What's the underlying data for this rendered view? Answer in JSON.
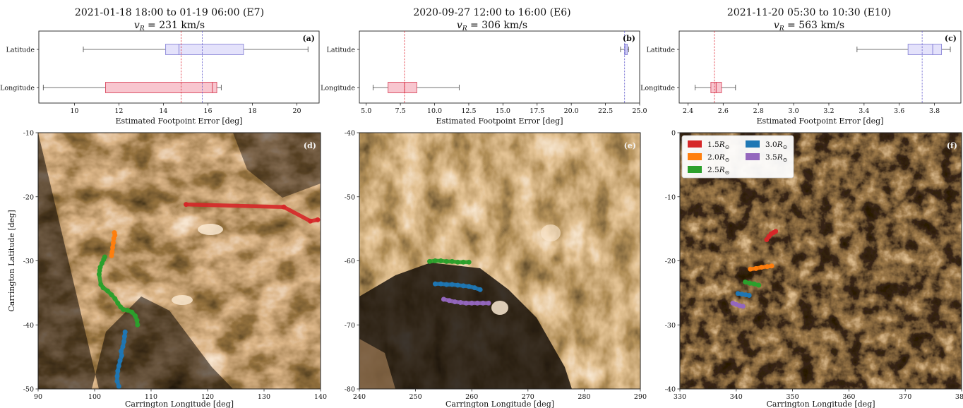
{
  "figure": {
    "colors": {
      "latitude_box": "#e4e2fb",
      "latitude_edge": "#8a86d8",
      "longitude_box": "#f8c6cf",
      "longitude_edge": "#d9495f",
      "median_red": "#e0303b",
      "median_blue": "#6a63cf",
      "map_dark": "#0d0704",
      "map_bright": "#f3dcbf",
      "s15": "#d62728",
      "s20": "#ff7f0e",
      "s25": "#2ca02c",
      "s30": "#1f77b4",
      "s35": "#9467bd"
    }
  },
  "chart_data": [
    {
      "id": "a",
      "type": "box",
      "title_line1": "2021-01-18 18:00 to 01-19 06:00 (E7)",
      "title_line2": "v_R = 231 km/s",
      "vr_label": "v",
      "vr_sub": "R",
      "vr_rest": " = 231 km/s",
      "panel_label": "(a)",
      "xlabel": "Estimated Footpoint Error [deg]",
      "xlim": [
        8.4,
        21.0
      ],
      "xticks": [
        10,
        12,
        14,
        16,
        18,
        20
      ],
      "categories": [
        "Latitude",
        "Longitude"
      ],
      "boxes": [
        {
          "name": "Latitude",
          "whislo": 10.4,
          "q1": 14.1,
          "med": 14.7,
          "q3": 17.6,
          "whishi": 20.5
        },
        {
          "name": "Longitude",
          "whislo": 8.6,
          "q1": 11.4,
          "med": 16.2,
          "q3": 16.4,
          "whishi": 16.6
        }
      ],
      "vlines": [
        {
          "value": 14.8,
          "color": "red"
        },
        {
          "value": 15.75,
          "color": "blue"
        }
      ]
    },
    {
      "id": "b",
      "type": "box",
      "title_line1": "2020-09-27 12:00 to 16:00 (E6)",
      "vr_label": "v",
      "vr_sub": "R",
      "vr_rest": " = 306 km/s",
      "panel_label": "(b)",
      "xlabel": "Estimated Footpoint Error [deg]",
      "xlim": [
        4.5,
        25.0
      ],
      "xticks": [
        5.0,
        7.5,
        10.0,
        12.5,
        15.0,
        17.5,
        20.0,
        22.5,
        25.0
      ],
      "tick_labels": [
        "5.0",
        "7.5",
        "10.0",
        "12.5",
        "15.0",
        "17.5",
        "20.0",
        "22.5",
        "25.0"
      ],
      "categories": [
        "Latitude",
        "Longitude"
      ],
      "boxes": [
        {
          "name": "Latitude",
          "whislo": 23.6,
          "q1": 23.9,
          "med": 24.0,
          "q3": 24.1,
          "whishi": 24.2
        },
        {
          "name": "Longitude",
          "whislo": 5.5,
          "q1": 6.6,
          "med": 7.8,
          "q3": 8.7,
          "whishi": 11.8
        }
      ],
      "vlines": [
        {
          "value": 7.8,
          "color": "red"
        },
        {
          "value": 23.9,
          "color": "blue"
        }
      ]
    },
    {
      "id": "c",
      "type": "box",
      "title_line1": "2021-11-20 05:30 to 10:30 (E10)",
      "vr_label": "v",
      "vr_sub": "R",
      "vr_rest": " = 563 km/s",
      "panel_label": "(c)",
      "xlabel": "Estimated Footpoint Error [deg]",
      "xlim": [
        2.35,
        3.95
      ],
      "xticks": [
        2.4,
        2.6,
        2.8,
        3.0,
        3.2,
        3.4,
        3.6,
        3.8
      ],
      "tick_labels": [
        "2.4",
        "2.6",
        "2.8",
        "3.0",
        "3.2",
        "3.4",
        "3.6",
        "3.8"
      ],
      "categories": [
        "Latitude",
        "Longitude"
      ],
      "boxes": [
        {
          "name": "Latitude",
          "whislo": 3.36,
          "q1": 3.65,
          "med": 3.79,
          "q3": 3.84,
          "whishi": 3.89
        },
        {
          "name": "Longitude",
          "whislo": 2.44,
          "q1": 2.53,
          "med": 2.56,
          "q3": 2.59,
          "whishi": 2.67
        }
      ],
      "vlines": [
        {
          "value": 2.55,
          "color": "red"
        },
        {
          "value": 3.73,
          "color": "blue"
        }
      ]
    },
    {
      "id": "d",
      "type": "scatter",
      "panel_label": "(d)",
      "xlabel": "Carrington Longitude [deg]",
      "ylabel": "Carrington Latitude [deg]",
      "xlim": [
        90,
        140
      ],
      "ylim": [
        -50,
        -10
      ],
      "xticks": [
        90,
        100,
        110,
        120,
        130,
        140
      ],
      "yticks": [
        -50,
        -40,
        -30,
        -20,
        -10
      ],
      "series": [
        {
          "key": "s20",
          "points": [
            [
              103.5,
              -25.6
            ],
            [
              103.6,
              -26.0
            ],
            [
              103.4,
              -26.5
            ],
            [
              103.3,
              -27.2
            ],
            [
              103.2,
              -27.9
            ],
            [
              103.1,
              -28.6
            ],
            [
              103.0,
              -29.2
            ]
          ]
        },
        {
          "key": "s25",
          "points": [
            [
              101.8,
              -29.4
            ],
            [
              101.6,
              -29.8
            ],
            [
              101.3,
              -30.4
            ],
            [
              101.0,
              -31.0
            ],
            [
              100.9,
              -31.5
            ],
            [
              100.8,
              -32.1
            ],
            [
              101.1,
              -33.7
            ],
            [
              101.5,
              -34.2
            ],
            [
              102.3,
              -34.7
            ],
            [
              103.0,
              -35.3
            ],
            [
              103.6,
              -35.9
            ],
            [
              104.1,
              -36.6
            ],
            [
              104.6,
              -37.2
            ],
            [
              105.1,
              -37.6
            ],
            [
              105.8,
              -37.7
            ],
            [
              106.6,
              -38.0
            ],
            [
              107.2,
              -38.6
            ],
            [
              107.5,
              -39.3
            ],
            [
              107.6,
              -40.0
            ]
          ]
        },
        {
          "key": "s30",
          "points": [
            [
              105.4,
              -41.1
            ],
            [
              105.3,
              -41.8
            ],
            [
              105.2,
              -42.6
            ],
            [
              105.0,
              -43.4
            ],
            [
              104.7,
              -44.1
            ],
            [
              104.8,
              -44.8
            ],
            [
              104.5,
              -45.6
            ],
            [
              104.3,
              -46.4
            ],
            [
              104.1,
              -47.2
            ],
            [
              104.0,
              -48.0
            ],
            [
              104.0,
              -48.8
            ],
            [
              104.3,
              -49.6
            ]
          ]
        },
        {
          "key": "s15",
          "points": [
            [
              116.2,
              -21.2
            ],
            [
              133.5,
              -21.6
            ],
            [
              138.2,
              -23.8
            ],
            [
              139.5,
              -23.6
            ]
          ]
        }
      ]
    },
    {
      "id": "e",
      "type": "scatter",
      "panel_label": "(e)",
      "xlabel": "Carrington Longitude [deg]",
      "xlim": [
        240,
        290
      ],
      "ylim": [
        -80,
        -40
      ],
      "xticks": [
        240,
        250,
        260,
        270,
        280,
        290
      ],
      "yticks": [
        -80,
        -70,
        -60,
        -50,
        -40
      ],
      "series": [
        {
          "key": "s25",
          "points": [
            [
              252.5,
              -60.1
            ],
            [
              253.5,
              -60.0
            ],
            [
              254.5,
              -60.0
            ],
            [
              255.5,
              -60.1
            ],
            [
              256.5,
              -60.1
            ],
            [
              257.5,
              -60.2
            ],
            [
              258.5,
              -60.2
            ],
            [
              259.5,
              -60.2
            ]
          ]
        },
        {
          "key": "s30",
          "points": [
            [
              253.5,
              -63.6
            ],
            [
              254.5,
              -63.6
            ],
            [
              255.5,
              -63.7
            ],
            [
              256.5,
              -63.7
            ],
            [
              257.5,
              -63.8
            ],
            [
              258.5,
              -63.9
            ],
            [
              259.5,
              -64.0
            ],
            [
              260.5,
              -64.2
            ],
            [
              261.5,
              -64.5
            ]
          ]
        },
        {
          "key": "s35",
          "points": [
            [
              255.0,
              -66.0
            ],
            [
              256.0,
              -66.2
            ],
            [
              257.0,
              -66.4
            ],
            [
              258.0,
              -66.5
            ],
            [
              259.0,
              -66.6
            ],
            [
              260.0,
              -66.6
            ],
            [
              261.0,
              -66.6
            ],
            [
              262.0,
              -66.6
            ],
            [
              263.0,
              -66.6
            ]
          ]
        }
      ]
    },
    {
      "id": "f",
      "type": "scatter",
      "panel_label": "(f)",
      "xlabel": "Carrington Longitude [deg]",
      "xlim": [
        330,
        380
      ],
      "ylim": [
        -40,
        0
      ],
      "xticks": [
        330,
        340,
        350,
        360,
        370,
        380
      ],
      "yticks": [
        -40,
        -30,
        -20,
        -10,
        0
      ],
      "series": [
        {
          "key": "s15",
          "points": [
            [
              345.4,
              -16.7
            ],
            [
              345.8,
              -16.2
            ],
            [
              346.2,
              -15.8
            ],
            [
              346.6,
              -15.6
            ],
            [
              347.0,
              -15.4
            ]
          ]
        },
        {
          "key": "s20",
          "points": [
            [
              342.5,
              -21.3
            ],
            [
              343.5,
              -21.2
            ],
            [
              344.5,
              -21.0
            ],
            [
              345.5,
              -20.9
            ],
            [
              346.3,
              -20.8
            ]
          ]
        },
        {
          "key": "s25",
          "points": [
            [
              341.6,
              -23.3
            ],
            [
              342.4,
              -23.5
            ],
            [
              343.2,
              -23.6
            ],
            [
              344.0,
              -23.8
            ]
          ]
        },
        {
          "key": "s30",
          "points": [
            [
              340.3,
              -25.1
            ],
            [
              341.0,
              -25.2
            ],
            [
              341.7,
              -25.3
            ],
            [
              342.3,
              -25.4
            ]
          ]
        },
        {
          "key": "s35",
          "points": [
            [
              339.4,
              -26.6
            ],
            [
              340.0,
              -26.8
            ],
            [
              340.6,
              -27.0
            ],
            [
              341.2,
              -27.1
            ]
          ]
        }
      ],
      "legend": [
        {
          "key": "s15",
          "label": "1.5",
          "suffix": "R",
          "sub": "⊙"
        },
        {
          "key": "s20",
          "label": "2.0",
          "suffix": "R",
          "sub": "⊙"
        },
        {
          "key": "s25",
          "label": "2.5",
          "suffix": "R",
          "sub": "⊙"
        },
        {
          "key": "s30",
          "label": "3.0",
          "suffix": "R",
          "sub": "⊙"
        },
        {
          "key": "s35",
          "label": "3.5",
          "suffix": "R",
          "sub": "⊙"
        }
      ],
      "legend_placement": "top-left"
    }
  ]
}
